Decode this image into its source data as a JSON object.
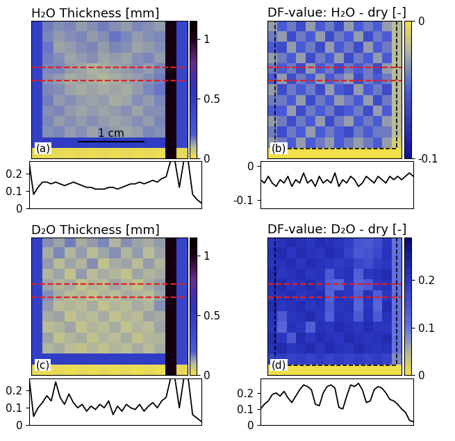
{
  "chart_data": [
    {
      "type": "heatmap",
      "title": "H₂O Thickness [mm]",
      "annotations": [
        "(a)",
        "1 cm"
      ],
      "tick_labels": false,
      "colorbar": {
        "range": [
          0,
          1.15
        ],
        "ticks": [
          0,
          0.5,
          1
        ]
      },
      "cells": [
        [
          0.45,
          0.16,
          0.14,
          0.15,
          0.13,
          0.14,
          0.16,
          0.14,
          0.13,
          0.15,
          0.14,
          0.13,
          1.05,
          0.4
        ],
        [
          0.45,
          0.15,
          0.13,
          0.14,
          0.15,
          0.13,
          0.14,
          0.17,
          0.15,
          0.13,
          0.14,
          0.15,
          1.05,
          0.4
        ],
        [
          0.45,
          0.17,
          0.12,
          0.13,
          0.14,
          0.15,
          0.13,
          0.15,
          0.14,
          0.12,
          0.13,
          0.14,
          1.05,
          0.4
        ],
        [
          0.45,
          0.16,
          0.14,
          0.12,
          0.13,
          0.14,
          0.12,
          0.13,
          0.12,
          0.14,
          0.15,
          0.13,
          1.05,
          0.4
        ],
        [
          0.45,
          0.15,
          0.15,
          0.13,
          0.12,
          0.1,
          0.11,
          0.12,
          0.13,
          0.14,
          0.13,
          0.15,
          1.05,
          0.4
        ],
        [
          0.45,
          0.14,
          0.13,
          0.11,
          0.12,
          0.11,
          0.1,
          0.11,
          0.12,
          0.13,
          0.14,
          0.16,
          1.05,
          0.4
        ],
        [
          0.45,
          0.15,
          0.14,
          0.12,
          0.11,
          0.12,
          0.11,
          0.12,
          0.11,
          0.13,
          0.15,
          0.17,
          1.05,
          0.4
        ],
        [
          0.45,
          0.16,
          0.13,
          0.14,
          0.13,
          0.12,
          0.13,
          0.11,
          0.12,
          0.14,
          0.13,
          0.15,
          1.05,
          0.4
        ],
        [
          0.45,
          0.14,
          0.15,
          0.13,
          0.12,
          0.13,
          0.12,
          0.13,
          0.14,
          0.12,
          0.14,
          0.14,
          1.05,
          0.4
        ],
        [
          0.45,
          0.15,
          0.13,
          0.14,
          0.13,
          0.14,
          0.13,
          0.12,
          0.13,
          0.14,
          0.13,
          0.15,
          1.05,
          0.4
        ],
        [
          0.45,
          0.14,
          0.15,
          0.13,
          0.14,
          0.12,
          0.14,
          0.13,
          0.12,
          0.13,
          0.15,
          0.14,
          1.05,
          0.4
        ],
        [
          0.45,
          0.5,
          0.5,
          0.5,
          0.5,
          0.5,
          0.5,
          0.5,
          0.5,
          0.5,
          0.5,
          0.5,
          1.05,
          0.4
        ],
        [
          0.02,
          0.01,
          0.02,
          0.01,
          0.02,
          0.01,
          0.02,
          0.01,
          0.02,
          0.01,
          0.02,
          0.01,
          1.05,
          0.02
        ]
      ]
    },
    {
      "type": "line",
      "color": "#000000",
      "tick_labels": "y",
      "ylim": [
        0,
        0.27
      ],
      "yticks": [
        0,
        0.1,
        0.2
      ],
      "values": [
        0.26,
        0.08,
        0.12,
        0.15,
        0.15,
        0.14,
        0.15,
        0.14,
        0.13,
        0.14,
        0.15,
        0.14,
        0.13,
        0.12,
        0.12,
        0.11,
        0.11,
        0.11,
        0.12,
        0.12,
        0.11,
        0.12,
        0.13,
        0.14,
        0.14,
        0.15,
        0.14,
        0.15,
        0.16,
        0.15,
        0.17,
        0.18,
        0.27,
        0.27,
        0.12,
        0.27,
        0.27,
        0.08,
        0.05,
        0.03
      ]
    },
    {
      "type": "heatmap",
      "title": "DF-value: H₂O - dry [-]",
      "annotations": [
        "(b)"
      ],
      "tick_labels": false,
      "colorbar": {
        "range": [
          -0.1,
          0
        ],
        "ticks": [
          -0.1,
          0
        ]
      },
      "cells": [
        [
          -0.03,
          -0.05,
          -0.04,
          -0.06,
          -0.03,
          -0.05,
          -0.04,
          -0.06,
          -0.03,
          -0.05,
          -0.04,
          -0.05,
          -0.03,
          -0.02
        ],
        [
          -0.04,
          -0.03,
          -0.06,
          -0.04,
          -0.05,
          -0.03,
          -0.06,
          -0.04,
          -0.05,
          -0.03,
          -0.06,
          -0.04,
          -0.05,
          -0.02
        ],
        [
          -0.05,
          -0.06,
          -0.03,
          -0.05,
          -0.04,
          -0.06,
          -0.03,
          -0.05,
          -0.04,
          -0.06,
          -0.03,
          -0.05,
          -0.04,
          -0.02
        ],
        [
          -0.03,
          -0.04,
          -0.05,
          -0.03,
          -0.06,
          -0.04,
          -0.05,
          -0.03,
          -0.06,
          -0.04,
          -0.05,
          -0.03,
          -0.05,
          -0.02
        ],
        [
          -0.04,
          -0.05,
          -0.04,
          -0.06,
          -0.03,
          -0.05,
          -0.04,
          -0.06,
          -0.04,
          -0.05,
          -0.04,
          -0.06,
          -0.03,
          -0.02
        ],
        [
          -0.05,
          -0.03,
          -0.06,
          -0.04,
          -0.05,
          -0.03,
          -0.05,
          -0.04,
          -0.03,
          -0.06,
          -0.04,
          -0.05,
          -0.04,
          -0.02
        ],
        [
          -0.03,
          -0.06,
          -0.04,
          -0.05,
          -0.04,
          -0.06,
          -0.03,
          -0.05,
          -0.06,
          -0.03,
          -0.05,
          -0.04,
          -0.06,
          -0.02
        ],
        [
          -0.04,
          -0.04,
          -0.05,
          -0.03,
          -0.06,
          -0.04,
          -0.05,
          -0.03,
          -0.04,
          -0.05,
          -0.03,
          -0.06,
          -0.04,
          -0.02
        ],
        [
          -0.05,
          -0.05,
          -0.03,
          -0.06,
          -0.04,
          -0.05,
          -0.04,
          -0.06,
          -0.05,
          -0.04,
          -0.06,
          -0.03,
          -0.05,
          -0.02
        ],
        [
          -0.03,
          -0.04,
          -0.06,
          -0.04,
          -0.05,
          -0.03,
          -0.06,
          -0.04,
          -0.03,
          -0.05,
          -0.04,
          -0.05,
          -0.03,
          -0.02
        ],
        [
          -0.04,
          -0.06,
          -0.04,
          -0.05,
          -0.03,
          -0.05,
          -0.04,
          -0.05,
          -0.06,
          -0.04,
          -0.05,
          -0.04,
          -0.04,
          -0.02
        ],
        [
          -0.03,
          -0.04,
          -0.05,
          -0.03,
          -0.05,
          -0.04,
          -0.03,
          -0.05,
          -0.04,
          -0.03,
          -0.04,
          -0.05,
          -0.03,
          -0.01
        ],
        [
          0,
          0,
          0,
          0,
          0,
          0,
          0,
          0,
          0,
          0,
          0,
          0,
          0,
          0
        ]
      ]
    },
    {
      "type": "line",
      "color": "#000000",
      "tick_labels": "y",
      "ylim": [
        -0.125,
        0.015
      ],
      "yticks": [
        -0.1,
        0
      ],
      "values": [
        -0.04,
        -0.05,
        -0.03,
        -0.05,
        -0.06,
        -0.04,
        -0.05,
        -0.03,
        -0.06,
        -0.04,
        -0.05,
        -0.02,
        -0.05,
        -0.04,
        -0.06,
        -0.03,
        -0.05,
        -0.04,
        -0.05,
        -0.02,
        -0.06,
        -0.04,
        -0.05,
        -0.03,
        -0.04,
        -0.06,
        -0.05,
        -0.03,
        -0.04,
        -0.05,
        -0.03,
        -0.04,
        -0.05,
        -0.03,
        -0.04,
        -0.03,
        -0.04,
        -0.03,
        -0.02,
        -0.03
      ]
    },
    {
      "type": "heatmap",
      "title": "D₂O Thickness [mm]",
      "annotations": [
        "(c)"
      ],
      "tick_labels": false,
      "colorbar": {
        "range": [
          0,
          1.15
        ],
        "ticks": [
          0,
          0.5,
          1
        ]
      },
      "cells": [
        [
          0.45,
          0.14,
          0.12,
          0.16,
          0.11,
          0.13,
          0.15,
          0.1,
          0.14,
          0.12,
          0.11,
          0.13,
          1.05,
          0.4
        ],
        [
          0.45,
          0.11,
          0.15,
          0.1,
          0.13,
          0.09,
          0.12,
          0.14,
          0.1,
          0.13,
          0.09,
          0.12,
          1.05,
          0.4
        ],
        [
          0.45,
          0.13,
          0.09,
          0.12,
          0.1,
          0.14,
          0.08,
          0.11,
          0.12,
          0.09,
          0.13,
          0.1,
          1.05,
          0.4
        ],
        [
          0.45,
          0.1,
          0.12,
          0.08,
          0.13,
          0.09,
          0.11,
          0.1,
          0.08,
          0.12,
          0.1,
          0.11,
          1.05,
          0.4
        ],
        [
          0.45,
          0.12,
          0.1,
          0.11,
          0.08,
          0.1,
          0.09,
          0.12,
          0.1,
          0.08,
          0.11,
          0.13,
          1.05,
          0.4
        ],
        [
          0.45,
          0.14,
          0.11,
          0.09,
          0.1,
          0.08,
          0.1,
          0.09,
          0.11,
          0.1,
          0.09,
          0.12,
          1.05,
          0.4
        ],
        [
          0.45,
          0.13,
          0.09,
          0.1,
          0.09,
          0.11,
          0.08,
          0.1,
          0.09,
          0.11,
          0.1,
          0.14,
          1.05,
          0.4
        ],
        [
          0.45,
          0.11,
          0.12,
          0.08,
          0.1,
          0.09,
          0.11,
          0.08,
          0.1,
          0.09,
          0.12,
          0.11,
          1.05,
          0.4
        ],
        [
          0.45,
          0.09,
          0.1,
          0.12,
          0.08,
          0.1,
          0.09,
          0.11,
          0.08,
          0.1,
          0.09,
          0.12,
          1.05,
          0.4
        ],
        [
          0.45,
          0.12,
          0.08,
          0.1,
          0.11,
          0.08,
          0.1,
          0.09,
          0.11,
          0.08,
          0.1,
          0.1,
          1.05,
          0.4
        ],
        [
          0.45,
          0.1,
          0.11,
          0.09,
          0.08,
          0.1,
          0.08,
          0.1,
          0.09,
          0.11,
          0.09,
          0.11,
          1.05,
          0.4
        ],
        [
          0.45,
          0.5,
          0.5,
          0.5,
          0.5,
          0.5,
          0.5,
          0.5,
          0.5,
          0.5,
          0.5,
          0.5,
          1.05,
          0.4
        ],
        [
          0.02,
          0.01,
          0.02,
          0.01,
          0.02,
          0.01,
          0.02,
          0.01,
          0.02,
          0.01,
          0.02,
          0.01,
          1.05,
          0.02
        ]
      ]
    },
    {
      "type": "line",
      "color": "#000000",
      "tick_labels": "y",
      "ylim": [
        0,
        0.27
      ],
      "yticks": [
        0,
        0.1,
        0.2
      ],
      "values": [
        0.27,
        0.05,
        0.1,
        0.13,
        0.17,
        0.14,
        0.25,
        0.16,
        0.12,
        0.18,
        0.13,
        0.1,
        0.12,
        0.08,
        0.11,
        0.09,
        0.12,
        0.1,
        0.14,
        0.06,
        0.11,
        0.08,
        0.12,
        0.1,
        0.09,
        0.12,
        0.08,
        0.11,
        0.13,
        0.1,
        0.14,
        0.16,
        0.27,
        0.27,
        0.1,
        0.27,
        0.27,
        0.06,
        0.04,
        0.02
      ]
    },
    {
      "type": "heatmap",
      "title": "DF-value: D₂O - dry [-]",
      "annotations": [
        "(d)"
      ],
      "tick_labels": false,
      "colorbar": {
        "range": [
          0,
          0.29
        ],
        "ticks": [
          0,
          0.1,
          0.2
        ]
      },
      "cells": [
        [
          0.2,
          0.21,
          0.22,
          0.21,
          0.2,
          0.22,
          0.21,
          0.2,
          0.19,
          0.15,
          0.14,
          0.16,
          0.2,
          0.1
        ],
        [
          0.21,
          0.22,
          0.2,
          0.22,
          0.21,
          0.2,
          0.22,
          0.21,
          0.18,
          0.14,
          0.15,
          0.17,
          0.21,
          0.1
        ],
        [
          0.2,
          0.21,
          0.22,
          0.2,
          0.22,
          0.21,
          0.2,
          0.19,
          0.2,
          0.17,
          0.16,
          0.19,
          0.2,
          0.1
        ],
        [
          0.22,
          0.2,
          0.21,
          0.22,
          0.2,
          0.21,
          0.14,
          0.2,
          0.21,
          0.13,
          0.2,
          0.21,
          0.22,
          0.1
        ],
        [
          0.21,
          0.22,
          0.2,
          0.21,
          0.22,
          0.2,
          0.13,
          0.12,
          0.2,
          0.12,
          0.14,
          0.2,
          0.21,
          0.1
        ],
        [
          0.2,
          0.21,
          0.22,
          0.2,
          0.21,
          0.22,
          0.12,
          0.21,
          0.2,
          0.13,
          0.21,
          0.13,
          0.2,
          0.1
        ],
        [
          0.22,
          0.2,
          0.21,
          0.22,
          0.2,
          0.21,
          0.14,
          0.2,
          0.21,
          0.12,
          0.2,
          0.12,
          0.22,
          0.1
        ],
        [
          0.21,
          0.14,
          0.2,
          0.21,
          0.22,
          0.2,
          0.13,
          0.21,
          0.2,
          0.14,
          0.21,
          0.14,
          0.21,
          0.1
        ],
        [
          0.2,
          0.12,
          0.21,
          0.2,
          0.13,
          0.21,
          0.2,
          0.22,
          0.21,
          0.2,
          0.22,
          0.2,
          0.2,
          0.1
        ],
        [
          0.22,
          0.2,
          0.14,
          0.22,
          0.2,
          0.22,
          0.21,
          0.2,
          0.22,
          0.21,
          0.2,
          0.21,
          0.22,
          0.1
        ],
        [
          0.21,
          0.22,
          0.2,
          0.21,
          0.22,
          0.2,
          0.22,
          0.21,
          0.2,
          0.22,
          0.21,
          0.2,
          0.21,
          0.1
        ],
        [
          0.18,
          0.19,
          0.18,
          0.19,
          0.18,
          0.19,
          0.18,
          0.19,
          0.18,
          0.19,
          0.18,
          0.19,
          0.18,
          0.08
        ],
        [
          0,
          0,
          0,
          0,
          0,
          0,
          0,
          0,
          0,
          0,
          0,
          0,
          0,
          0
        ]
      ]
    },
    {
      "type": "line",
      "color": "#000000",
      "tick_labels": "y",
      "ylim": [
        0,
        0.29
      ],
      "yticks": [
        0,
        0.1,
        0.2
      ],
      "values": [
        0.1,
        0.13,
        0.15,
        0.19,
        0.2,
        0.18,
        0.21,
        0.17,
        0.14,
        0.18,
        0.22,
        0.25,
        0.24,
        0.22,
        0.13,
        0.12,
        0.2,
        0.24,
        0.25,
        0.23,
        0.11,
        0.1,
        0.18,
        0.25,
        0.24,
        0.26,
        0.22,
        0.14,
        0.15,
        0.22,
        0.24,
        0.23,
        0.2,
        0.16,
        0.15,
        0.13,
        0.1,
        0.08,
        0.03,
        0.02
      ]
    }
  ]
}
